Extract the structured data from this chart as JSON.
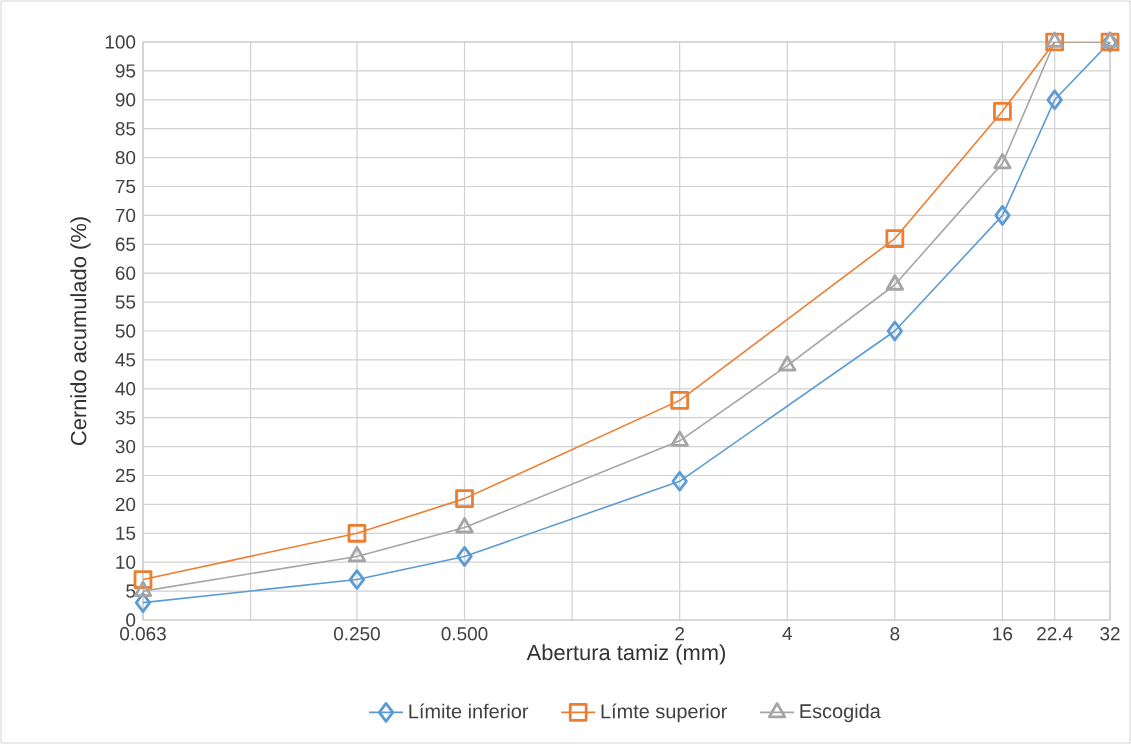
{
  "chart_data": {
    "type": "line",
    "xlabel": "Abertura tamiz (mm)",
    "ylabel": "Cernido acumulado (%)",
    "log": "x",
    "grid": true,
    "legend": "bottom",
    "xlim": [
      0.063,
      32
    ],
    "ylim": [
      0,
      100
    ],
    "xticks": [
      0.063,
      {
        "value": 0.126,
        "label": null
      },
      {
        "value": 0.25,
        "label": "0.250"
      },
      {
        "value": 0.5,
        "label": "0.500"
      },
      {
        "value": 1,
        "label": null
      },
      2,
      4,
      8,
      16,
      22.4,
      32
    ],
    "yticks": [
      0,
      5,
      10,
      15,
      20,
      25,
      30,
      35,
      40,
      45,
      50,
      55,
      60,
      65,
      70,
      75,
      80,
      85,
      90,
      95,
      100
    ],
    "series": [
      {
        "name": "Límite inferior",
        "color": "#5b9bd5",
        "marker": "diamond",
        "x": [
          0.063,
          0.25,
          0.5,
          2,
          8,
          16,
          22.4,
          32
        ],
        "values": [
          3,
          7,
          11,
          24,
          50,
          70,
          90,
          100
        ]
      },
      {
        "name": "Límte superior",
        "color": "#ed7d31",
        "marker": "square",
        "x": [
          0.063,
          0.25,
          0.5,
          2,
          8,
          16,
          22.4,
          32
        ],
        "values": [
          7,
          15,
          21,
          38,
          66,
          88,
          100,
          100
        ]
      },
      {
        "name": "Escogida",
        "color": "#a5a5a5",
        "marker": "triangle",
        "x": [
          0.063,
          0.25,
          0.5,
          2,
          4,
          8,
          16,
          22.4,
          32
        ],
        "values": [
          5,
          11,
          16,
          31,
          44,
          58,
          79,
          100,
          100
        ]
      }
    ]
  }
}
